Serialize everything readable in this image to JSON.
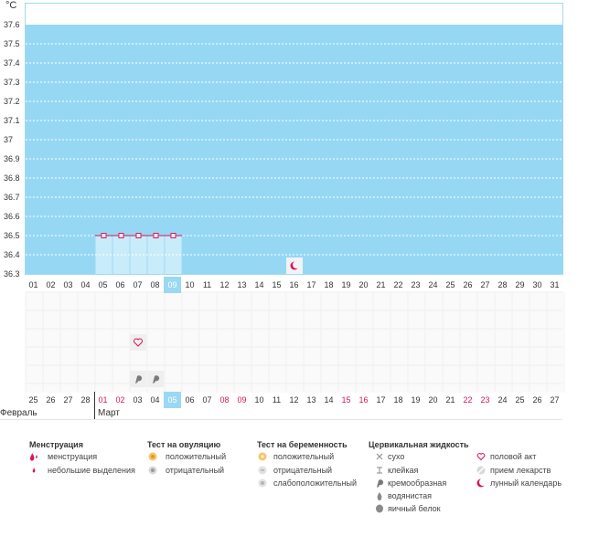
{
  "y_axis": {
    "unit": "°C",
    "ticks": [
      "37.6",
      "37.5",
      "37.4",
      "37.3",
      "37.2",
      "37.1",
      "37",
      "36.9",
      "36.8",
      "36.7",
      "36.6",
      "36.5",
      "36.4",
      "36.3"
    ]
  },
  "days_top": [
    "01",
    "02",
    "03",
    "04",
    "05",
    "06",
    "07",
    "08",
    "09",
    "10",
    "11",
    "12",
    "13",
    "14",
    "15",
    "16",
    "17",
    "18",
    "19",
    "20",
    "21",
    "22",
    "23",
    "24",
    "25",
    "26",
    "27",
    "28",
    "29",
    "30",
    "31"
  ],
  "days_bottom": [
    "25",
    "26",
    "27",
    "28",
    "01",
    "02",
    "03",
    "04",
    "05",
    "06",
    "07",
    "08",
    "09",
    "10",
    "11",
    "12",
    "13",
    "14",
    "15",
    "16",
    "17",
    "18",
    "19",
    "20",
    "21",
    "22",
    "23",
    "24",
    "25",
    "26",
    "27"
  ],
  "months": {
    "prev": "Февраль",
    "current": "Март"
  },
  "selected_top": "09",
  "selected_bottom": "05",
  "red_bottom": [
    "01",
    "02",
    "08",
    "09",
    "15",
    "16",
    "22",
    "23"
  ],
  "colors": {
    "fill": "#96d8f3",
    "period_fill": "#c9ecfa",
    "line": "#d6155f",
    "highlight": "#9ad8f4"
  },
  "chart_data": {
    "type": "line",
    "ylim": [
      36.3,
      37.6
    ],
    "x": [
      "05",
      "06",
      "07",
      "08",
      "09"
    ],
    "values": [
      36.5,
      36.5,
      36.5,
      36.5,
      36.5
    ]
  },
  "legend": {
    "menstruation": {
      "title": "Менструация",
      "items": [
        "менструация",
        "небольшие выделения"
      ]
    },
    "ovulation_test": {
      "title": "Тест на овуляцию",
      "items": [
        "положительный",
        "отрицательный"
      ]
    },
    "pregnancy_test": {
      "title": "Тест на беременность",
      "items": [
        "положительный",
        "отрицательный",
        "слабоположительный"
      ]
    },
    "cervical": {
      "title": "Цервикальная жидкость",
      "items": [
        "сухо",
        "клейкая",
        "кремообразная",
        "водянистая",
        "яичный белок"
      ]
    },
    "other": {
      "items": [
        "половой акт",
        "прием лекарств",
        "лунный календарь"
      ]
    }
  }
}
